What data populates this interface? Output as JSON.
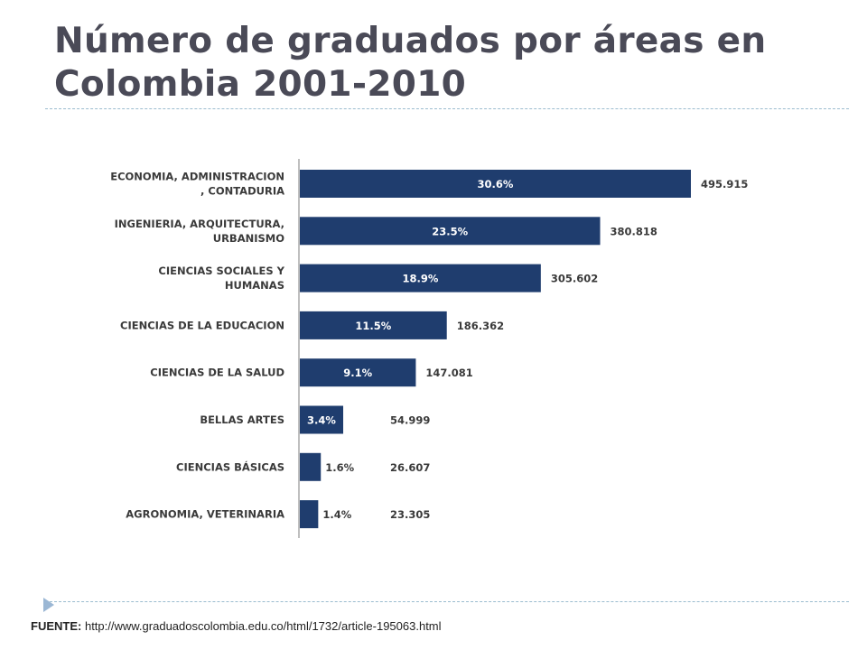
{
  "slide": {
    "title_line1": "Número de graduados por áreas en",
    "title_line2": "Colombia 2001-2010"
  },
  "footer": {
    "source_label": "FUENTE:",
    "source_url": "http://www.graduadoscolombia.edu.co/html/1732/article-195063.html"
  },
  "colors": {
    "bar": "#1f3d6e",
    "axis": "#bfbfbf",
    "title": "#4a4a57",
    "divider": "#9bbccf"
  },
  "chart_data": {
    "type": "bar",
    "orientation": "horizontal",
    "title": "",
    "xlabel": "",
    "ylabel": "",
    "grid": false,
    "xlim": [
      0,
      520000
    ],
    "categories": [
      [
        "ECONOMIA, ADMINISTRACION",
        ", CONTADURIA"
      ],
      [
        "INGENIERIA, ARQUITECTURA,",
        "URBANISMO"
      ],
      [
        "CIENCIAS SOCIALES Y",
        "HUMANAS"
      ],
      [
        "CIENCIAS DE LA EDUCACION"
      ],
      [
        "CIENCIAS DE LA SALUD"
      ],
      [
        "BELLAS ARTES"
      ],
      [
        "CIENCIAS BÁSICAS"
      ],
      [
        "AGRONOMIA, VETERINARIA"
      ]
    ],
    "values": [
      495915,
      380818,
      305602,
      186362,
      147081,
      54999,
      26607,
      23305
    ],
    "value_labels": [
      "495.915",
      "380.818",
      "305.602",
      "186.362",
      "147.081",
      "54.999",
      "26.607",
      "23.305"
    ],
    "percent_labels": [
      "30.6%",
      "23.5%",
      "18.9%",
      "11.5%",
      "9.1%",
      "3.4%",
      "1.6%",
      "1.4%"
    ]
  }
}
